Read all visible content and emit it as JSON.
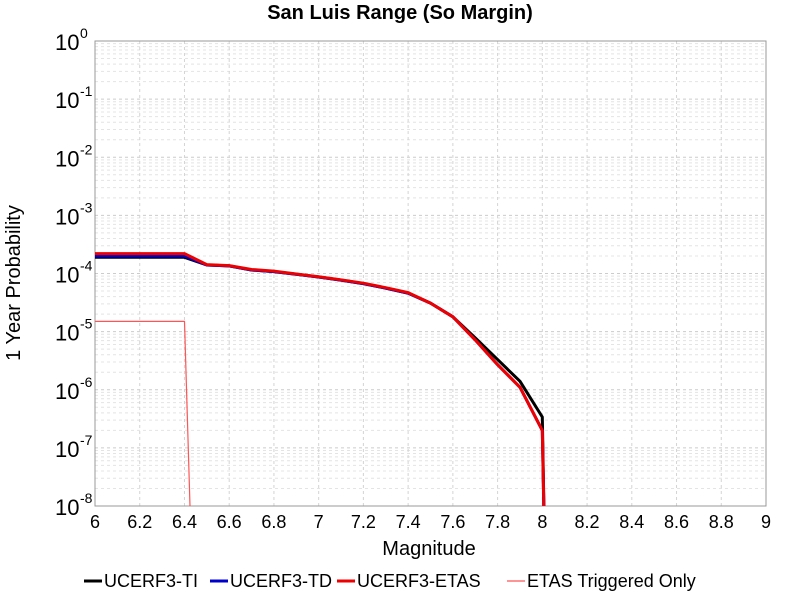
{
  "chart_data": {
    "type": "line",
    "title": "San Luis Range (So Margin)",
    "xlabel": "Magnitude",
    "ylabel": "1 Year Probability",
    "xlim": [
      6,
      9
    ],
    "ylim": [
      1e-08,
      1
    ],
    "y_scale": "log",
    "grid": true,
    "legend_position": "bottom",
    "x_ticks": [
      "6",
      "6.2",
      "6.4",
      "6.6",
      "6.8",
      "7",
      "7.2",
      "7.4",
      "7.6",
      "7.8",
      "8",
      "8.2",
      "8.4",
      "8.6",
      "8.8",
      "9"
    ],
    "y_ticks": [
      {
        "value": 1,
        "base": "10",
        "exp": "0"
      },
      {
        "value": 0.1,
        "base": "10",
        "exp": "-1"
      },
      {
        "value": 0.01,
        "base": "10",
        "exp": "-2"
      },
      {
        "value": 0.001,
        "base": "10",
        "exp": "-3"
      },
      {
        "value": 0.0001,
        "base": "10",
        "exp": "-4"
      },
      {
        "value": 1e-05,
        "base": "10",
        "exp": "-5"
      },
      {
        "value": 1e-06,
        "base": "10",
        "exp": "-6"
      },
      {
        "value": 1e-07,
        "base": "10",
        "exp": "-7"
      },
      {
        "value": 1e-08,
        "base": "10",
        "exp": "-8"
      }
    ],
    "series": [
      {
        "name": "UCERF3-TI",
        "color": "#000000",
        "width": 3,
        "x": [
          6.0,
          6.4,
          6.5,
          6.6,
          6.7,
          6.8,
          6.9,
          7.0,
          7.1,
          7.2,
          7.3,
          7.4,
          7.5,
          7.6,
          7.7,
          7.8,
          7.9,
          8.0,
          8.01
        ],
        "y": [
          0.00019,
          0.00019,
          0.00014,
          0.000135,
          0.000115,
          0.000108,
          9.7e-05,
          8.7e-05,
          7.7e-05,
          6.7e-05,
          5.6e-05,
          4.6e-05,
          3.1e-05,
          1.8e-05,
          7.8e-06,
          3.3e-06,
          1.4e-06,
          3.4e-07,
          2e-09
        ]
      },
      {
        "name": "UCERF3-TD",
        "color": "#0000cc",
        "width": 3,
        "x": [
          6.0,
          6.4,
          6.5,
          6.6,
          6.7,
          6.8,
          6.9,
          7.0,
          7.1,
          7.2,
          7.3,
          7.4,
          7.5,
          7.6,
          7.7,
          7.8,
          7.9,
          8.0,
          8.01
        ],
        "y": [
          0.0002,
          0.0002,
          0.00014,
          0.000135,
          0.000115,
          0.000108,
          9.7e-05,
          8.7e-05,
          7.7e-05,
          6.7e-05,
          5.6e-05,
          4.6e-05,
          3.1e-05,
          1.8e-05,
          7.2e-06,
          2.7e-06,
          1.1e-06,
          2e-07,
          2e-09
        ]
      },
      {
        "name": "UCERF3-ETAS",
        "color": "#ee0000",
        "width": 3,
        "x": [
          6.0,
          6.4,
          6.5,
          6.6,
          6.7,
          6.8,
          6.9,
          7.0,
          7.1,
          7.2,
          7.3,
          7.4,
          7.5,
          7.6,
          7.7,
          7.8,
          7.9,
          8.0,
          8.01
        ],
        "y": [
          0.00022,
          0.00022,
          0.000142,
          0.000137,
          0.000117,
          0.00011,
          9.8e-05,
          8.8e-05,
          7.8e-05,
          6.8e-05,
          5.7e-05,
          4.7e-05,
          3.1e-05,
          1.8e-05,
          7.2e-06,
          2.7e-06,
          1.1e-06,
          2e-07,
          2e-09
        ]
      },
      {
        "name": "ETAS Triggered Only",
        "color": "#ff5555",
        "width": 1.2,
        "x": [
          6.0,
          6.4,
          6.43
        ],
        "y": [
          1.5e-05,
          1.5e-05,
          2e-09
        ]
      }
    ]
  }
}
